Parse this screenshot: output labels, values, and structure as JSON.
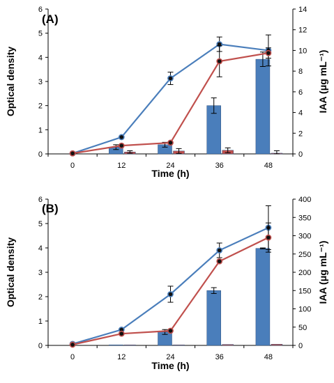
{
  "chart_data": [
    {
      "type": "bar",
      "panel_label": "(A)",
      "xlabel": "Time (h)",
      "ylabel_left": "Optical density",
      "ylabel_right": "IAA (μg mL⁻¹)",
      "categories": [
        "0",
        "12",
        "24",
        "36",
        "48"
      ],
      "ylim_left": [
        0,
        6
      ],
      "ylim_right": [
        0,
        14
      ],
      "yticks_left": [
        "0",
        "1",
        "2",
        "3",
        "4",
        "5",
        "6"
      ],
      "yticks_right": [
        "0",
        "2",
        "4",
        "6",
        "8",
        "10",
        "12",
        "14"
      ],
      "grid": false,
      "series": [
        {
          "kind": "bar",
          "axis": "left",
          "color": "#4a7ebb",
          "values": [
            0,
            0.28,
            0.38,
            2.0,
            3.92
          ],
          "errors": [
            0,
            0.1,
            0.1,
            0.32,
            0.3
          ]
        },
        {
          "kind": "bar",
          "axis": "left",
          "color": "#c0504d",
          "values": [
            0,
            0.08,
            0.12,
            0.15,
            0.03
          ],
          "errors": [
            0,
            0.05,
            0.1,
            0.1,
            0.1
          ]
        },
        {
          "kind": "line",
          "axis": "right",
          "color": "#4a7ebb",
          "values": [
            0.05,
            1.62,
            7.3,
            10.6,
            10.0
          ],
          "errors": [
            0,
            0,
            0.6,
            0.7,
            1.5
          ]
        },
        {
          "kind": "line",
          "axis": "right",
          "color": "#c0504d",
          "values": [
            0.05,
            0.8,
            1.08,
            8.95,
            9.75
          ],
          "errors": [
            0,
            0,
            0,
            1.5,
            0.5
          ]
        }
      ]
    },
    {
      "type": "bar",
      "panel_label": "(B)",
      "xlabel": "Time (h)",
      "ylabel_left": "Optical density",
      "ylabel_right": "IAA (μg mL⁻¹)",
      "categories": [
        "0",
        "12",
        "24",
        "36",
        "48"
      ],
      "ylim_left": [
        0,
        6
      ],
      "ylim_right": [
        0,
        400
      ],
      "yticks_left": [
        "0",
        "1",
        "2",
        "3",
        "4",
        "5",
        "6"
      ],
      "yticks_right": [
        "0",
        "50",
        "100",
        "150",
        "200",
        "250",
        "300",
        "350",
        "400"
      ],
      "grid": false,
      "series": [
        {
          "kind": "bar",
          "axis": "left",
          "color": "#4a7ebb",
          "values": [
            0,
            0.01,
            0.55,
            2.25,
            3.98
          ],
          "errors": [
            0,
            0,
            0.1,
            0.12,
            0.02
          ]
        },
        {
          "kind": "bar",
          "axis": "left",
          "color": "#c0504d",
          "values": [
            0,
            0.01,
            0.01,
            0.04,
            0.05
          ],
          "errors": [
            0,
            0,
            0,
            0,
            0
          ]
        },
        {
          "kind": "line",
          "axis": "right",
          "color": "#4a7ebb",
          "values": [
            4,
            43,
            140,
            260,
            322
          ],
          "errors": [
            0,
            0,
            22,
            20,
            60
          ]
        },
        {
          "kind": "line",
          "axis": "right",
          "color": "#c0504d",
          "values": [
            2,
            32,
            40,
            230,
            295
          ],
          "errors": [
            0,
            0,
            0,
            0,
            40
          ]
        }
      ]
    }
  ]
}
